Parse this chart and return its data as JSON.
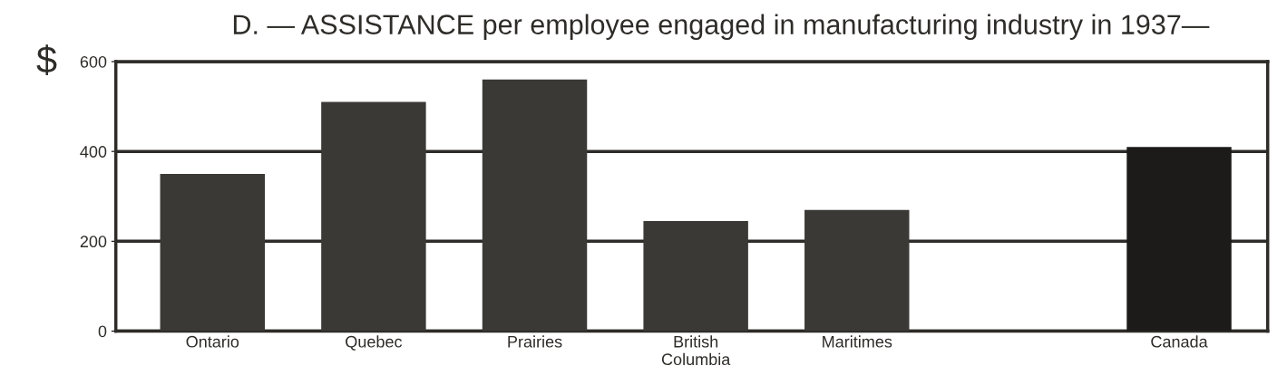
{
  "chart_data": {
    "type": "bar",
    "title": "D. — ASSISTANCE per employee engaged in manufacturing industry in 1937—",
    "ylabel": "$",
    "categories": [
      "Ontario",
      "Quebec",
      "Prairies",
      "British\nColumbia",
      "Maritimes",
      null,
      "Canada"
    ],
    "values": [
      350,
      510,
      560,
      245,
      270,
      null,
      410
    ],
    "colors": [
      "#3a3935",
      "#3a3935",
      "#3a3935",
      "#3a3935",
      "#3a3935",
      "#3a3935",
      "#1c1b19"
    ],
    "ylim": [
      0,
      600
    ],
    "yticks": [
      0,
      200,
      400,
      600
    ],
    "grid": "y"
  }
}
